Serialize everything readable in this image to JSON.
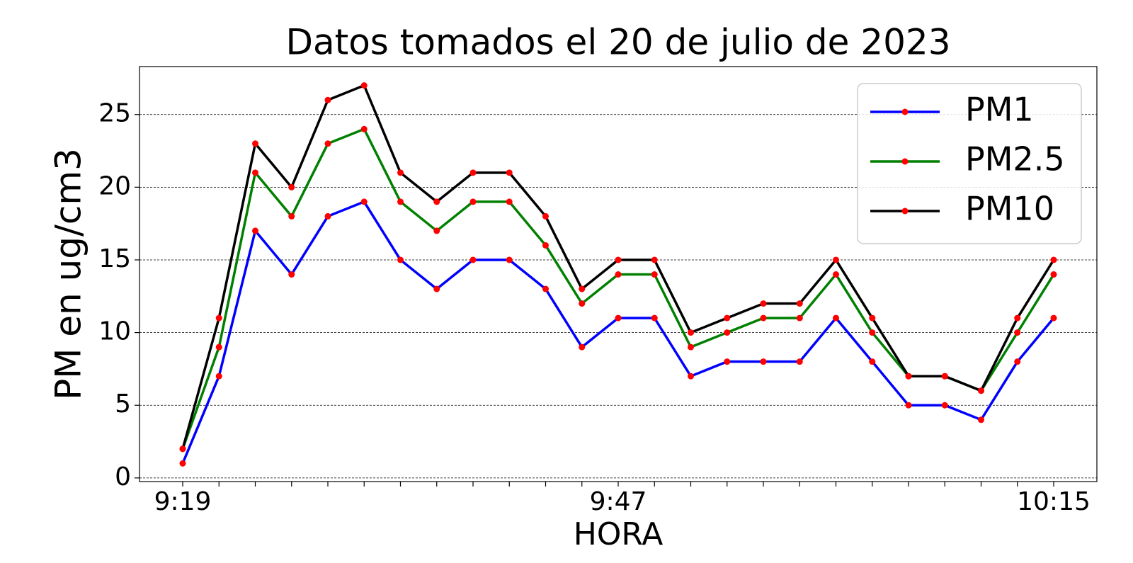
{
  "chart_data": {
    "type": "line",
    "title": "Datos tomados el 20 de julio de 2023",
    "x_label": "HORA",
    "y_label": "PM en ug/cm3",
    "categories": [
      "9:19",
      null,
      null,
      null,
      null,
      null,
      null,
      null,
      null,
      null,
      null,
      null,
      "9:47",
      null,
      null,
      null,
      null,
      null,
      null,
      null,
      null,
      null,
      null,
      null,
      "10:15"
    ],
    "series": [
      {
        "name": "PM1",
        "color": "#0000ff",
        "values": [
          1,
          7,
          17,
          14,
          18,
          19,
          15,
          13,
          15,
          15,
          13,
          9,
          11,
          11,
          7,
          8,
          8,
          8,
          11,
          8,
          5,
          5,
          4,
          8,
          11
        ]
      },
      {
        "name": "PM2.5",
        "color": "#008000",
        "values": [
          2,
          9,
          21,
          18,
          23,
          24,
          19,
          17,
          19,
          19,
          16,
          12,
          14,
          14,
          9,
          10,
          11,
          11,
          14,
          10,
          7,
          7,
          6,
          10,
          14
        ]
      },
      {
        "name": "PM10",
        "color": "#000000",
        "values": [
          2,
          11,
          23,
          20,
          26,
          27,
          21,
          19,
          21,
          21,
          18,
          13,
          15,
          15,
          10,
          11,
          12,
          12,
          15,
          11,
          7,
          7,
          6,
          11,
          15
        ]
      }
    ],
    "marker_color": "#ff0000",
    "ylim": [
      -0.25,
      28.3
    ],
    "yticks": [
      0,
      5,
      10,
      15,
      20,
      25
    ],
    "grid": true,
    "legend": "upper right"
  }
}
